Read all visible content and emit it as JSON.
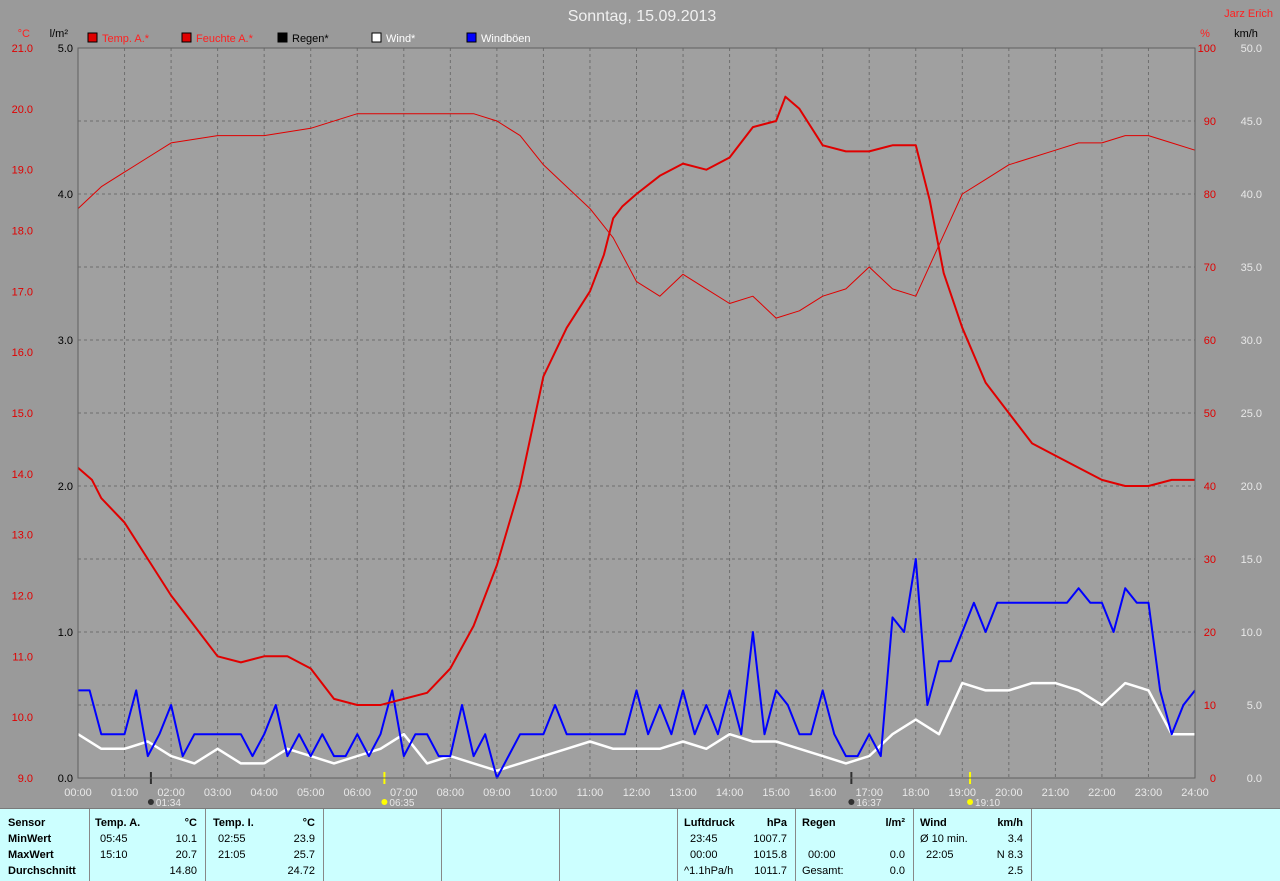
{
  "header": {
    "title": "Sonntag, 15.09.2013",
    "author": "Jarz Erich",
    "unit_left_temp": "°C",
    "unit_left_rain": "l/m²",
    "unit_right_hum": "%",
    "unit_right_wind": "km/h"
  },
  "legend": [
    {
      "label": "Temp. A.*",
      "color": "#e00000",
      "text_color": "#ff2020"
    },
    {
      "label": "Feuchte A.*",
      "color": "#e00000",
      "text_color": "#ff2020"
    },
    {
      "label": "Regen*",
      "color": "#000000",
      "text_color": "#000000"
    },
    {
      "label": "Wind*",
      "color": "#ffffff",
      "text_color": "#ffffff"
    },
    {
      "label": "Windböen",
      "color": "#0000ff",
      "text_color": "#ffffff"
    }
  ],
  "markers": {
    "sunrise": "06:35",
    "sunset": "19:10",
    "moonrise": "01:34",
    "moonset": "16:37"
  },
  "chart_data": {
    "type": "line",
    "title": "Sonntag, 15.09.2013",
    "x_ticks": [
      "00:00",
      "01:00",
      "02:00",
      "03:00",
      "04:00",
      "05:00",
      "06:00",
      "07:00",
      "08:00",
      "09:00",
      "10:00",
      "11:00",
      "12:00",
      "13:00",
      "14:00",
      "15:00",
      "16:00",
      "17:00",
      "18:00",
      "19:00",
      "20:00",
      "21:00",
      "22:00",
      "23:00",
      "24:00"
    ],
    "axes": {
      "temp_c": {
        "ticks": [
          "9.0",
          "10.0",
          "11.0",
          "12.0",
          "13.0",
          "14.0",
          "15.0",
          "16.0",
          "17.0",
          "18.0",
          "19.0",
          "20.0",
          "21.0"
        ],
        "range": [
          9,
          21
        ]
      },
      "rain_lm2": {
        "ticks": [
          "0.0",
          "1.0",
          "2.0",
          "3.0",
          "4.0",
          "5.0"
        ],
        "range": [
          0,
          5
        ]
      },
      "humidity_pct": {
        "ticks": [
          "0",
          "10",
          "20",
          "30",
          "40",
          "50",
          "60",
          "70",
          "80",
          "90",
          "100"
        ],
        "range": [
          0,
          100
        ]
      },
      "wind_kmh": {
        "ticks": [
          "0.0",
          "5.0",
          "10.0",
          "15.0",
          "20.0",
          "25.0",
          "30.0",
          "35.0",
          "40.0",
          "45.0",
          "50.0"
        ],
        "range": [
          0,
          50
        ]
      }
    },
    "series": [
      {
        "name": "Temp. A.*",
        "axis": "temp_c",
        "color": "#e00000",
        "x": [
          0,
          0.3,
          0.5,
          1,
          1.5,
          2,
          2.5,
          3,
          3.5,
          4,
          4.5,
          5,
          5.5,
          6,
          6.5,
          7,
          7.5,
          8,
          8.5,
          9,
          9.5,
          10,
          10.5,
          11,
          11.3,
          11.5,
          11.7,
          12,
          12.5,
          13,
          13.5,
          14,
          14.5,
          15,
          15.2,
          15.5,
          16,
          16.5,
          17,
          17.5,
          18,
          18.3,
          18.6,
          19,
          19.5,
          20,
          20.5,
          21,
          21.5,
          22,
          22.5,
          23,
          23.5,
          24
        ],
        "values": [
          14.1,
          13.9,
          13.6,
          13.2,
          12.6,
          12.0,
          11.5,
          11.0,
          10.9,
          11.0,
          11.0,
          10.8,
          10.3,
          10.2,
          10.2,
          10.3,
          10.4,
          10.8,
          11.5,
          12.5,
          13.8,
          15.6,
          16.4,
          17.0,
          17.6,
          18.2,
          18.4,
          18.6,
          18.9,
          19.1,
          19.0,
          19.2,
          19.7,
          19.8,
          20.2,
          20.0,
          19.4,
          19.3,
          19.3,
          19.4,
          19.4,
          18.5,
          17.3,
          16.4,
          15.5,
          15.0,
          14.5,
          14.3,
          14.1,
          13.9,
          13.8,
          13.8,
          13.9,
          13.9
        ]
      },
      {
        "name": "Feuchte A.*",
        "axis": "humidity_pct",
        "color": "#e00000",
        "x": [
          0,
          0.5,
          1,
          1.5,
          2,
          3,
          4,
          5,
          6,
          6.5,
          7,
          7.5,
          8,
          8.5,
          9,
          9.5,
          10,
          10.5,
          11,
          11.5,
          12,
          12.5,
          13,
          13.5,
          14,
          14.5,
          15,
          15.5,
          16,
          16.5,
          17,
          17.5,
          18,
          18.5,
          19,
          19.5,
          20,
          20.5,
          21,
          21.5,
          22,
          22.5,
          23,
          23.5,
          24
        ],
        "values": [
          78,
          81,
          83,
          85,
          87,
          88,
          88,
          89,
          91,
          91,
          91,
          91,
          91,
          91,
          90,
          88,
          84,
          81,
          78,
          74,
          68,
          66,
          69,
          67,
          65,
          66,
          63,
          64,
          66,
          67,
          70,
          67,
          66,
          73,
          80,
          82,
          84,
          85,
          86,
          87,
          87,
          88,
          88,
          87,
          86
        ]
      },
      {
        "name": "Wind*",
        "axis": "wind_kmh",
        "color": "#ffffff",
        "x": [
          0,
          0.5,
          1,
          1.5,
          2,
          2.5,
          3,
          3.5,
          4,
          4.5,
          5,
          5.5,
          6,
          6.5,
          7,
          7.5,
          8,
          8.5,
          9,
          9.5,
          10,
          10.5,
          11,
          11.5,
          12,
          12.5,
          13,
          13.5,
          14,
          14.5,
          15,
          15.5,
          16,
          16.5,
          17,
          17.5,
          18,
          18.5,
          19,
          19.5,
          20,
          20.5,
          21,
          21.5,
          22,
          22.5,
          23,
          23.5,
          24
        ],
        "values": [
          3,
          2,
          2,
          2.5,
          1.5,
          1,
          2,
          1,
          1,
          2,
          1.5,
          1,
          1.5,
          2,
          3,
          1,
          1.5,
          1,
          0.5,
          1,
          1.5,
          2,
          2.5,
          2,
          2,
          2,
          2.5,
          2,
          3,
          2.5,
          2.5,
          2,
          1.5,
          1,
          1.5,
          3,
          4,
          3,
          6.5,
          6,
          6,
          6.5,
          6.5,
          6,
          5,
          6.5,
          6,
          3,
          3
        ]
      },
      {
        "name": "Windböen",
        "axis": "wind_kmh",
        "color": "#0000ff",
        "x": [
          0,
          0.25,
          0.5,
          0.75,
          1,
          1.25,
          1.5,
          1.75,
          2,
          2.25,
          2.5,
          2.75,
          3,
          3.25,
          3.5,
          3.75,
          4,
          4.25,
          4.5,
          4.75,
          5,
          5.25,
          5.5,
          5.75,
          6,
          6.25,
          6.5,
          6.75,
          7,
          7.25,
          7.5,
          7.75,
          8,
          8.25,
          8.5,
          8.75,
          9,
          9.25,
          9.5,
          9.75,
          10,
          10.25,
          10.5,
          10.75,
          11,
          11.25,
          11.5,
          11.75,
          12,
          12.25,
          12.5,
          12.75,
          13,
          13.25,
          13.5,
          13.75,
          14,
          14.25,
          14.5,
          14.75,
          15,
          15.25,
          15.5,
          15.75,
          16,
          16.25,
          16.5,
          16.75,
          17,
          17.25,
          17.5,
          17.75,
          18,
          18.25,
          18.5,
          18.75,
          19,
          19.25,
          19.5,
          19.75,
          20,
          20.25,
          20.5,
          20.75,
          21,
          21.25,
          21.5,
          21.75,
          22,
          22.25,
          22.5,
          22.75,
          23,
          23.25,
          23.5,
          23.75,
          24
        ],
        "values": [
          6,
          6,
          3,
          3,
          3,
          6,
          1.5,
          3,
          5,
          1.5,
          3,
          3,
          3,
          3,
          3,
          1.5,
          3,
          5,
          1.5,
          3,
          1.5,
          3,
          1.5,
          1.5,
          3,
          1.5,
          3,
          6,
          1.5,
          3,
          3,
          1.5,
          1.5,
          5,
          1.5,
          3,
          0,
          1.5,
          3,
          3,
          3,
          5,
          3,
          3,
          3,
          3,
          3,
          3,
          6,
          3,
          5,
          3,
          6,
          3,
          5,
          3,
          6,
          3,
          10,
          3,
          6,
          5,
          3,
          3,
          6,
          3,
          1.5,
          1.5,
          3,
          1.5,
          11,
          10,
          15,
          5,
          8,
          8,
          10,
          12,
          10,
          12,
          12,
          12,
          12,
          12,
          12,
          12,
          13,
          12,
          12,
          10,
          13,
          12,
          12,
          6,
          3,
          5,
          6
        ]
      }
    ],
    "grid": true
  },
  "table": {
    "sensor": {
      "h": "Sensor",
      "rows": [
        "MinWert",
        "MaxWert",
        "Durchschnitt"
      ]
    },
    "temp_a": {
      "h": "Temp. A.",
      "unit": "°C",
      "times": [
        "05:45",
        "15:10",
        ""
      ],
      "values": [
        "10.1",
        "20.7",
        "14.80"
      ]
    },
    "temp_i": {
      "h": "Temp. I.",
      "unit": "°C",
      "times": [
        "02:55",
        "21:05",
        ""
      ],
      "values": [
        "23.9",
        "25.7",
        "24.72"
      ]
    },
    "luftdruck": {
      "h": "Luftdruck",
      "unit": "hPa",
      "times": [
        "23:45",
        "00:00",
        "^1.1hPa/h"
      ],
      "values": [
        "1007.7",
        "1015.8",
        "1011.7"
      ]
    },
    "regen": {
      "h": "Regen",
      "unit": "l/m²",
      "times": [
        "",
        "00:00",
        "Gesamt:"
      ],
      "values": [
        "",
        "0.0",
        "0.0"
      ]
    },
    "wind": {
      "h": "Wind",
      "unit": "km/h",
      "times": [
        "Ø 10 min.",
        "22:05",
        ""
      ],
      "values": [
        "3.4",
        "N 8.3",
        "2.5"
      ]
    }
  }
}
